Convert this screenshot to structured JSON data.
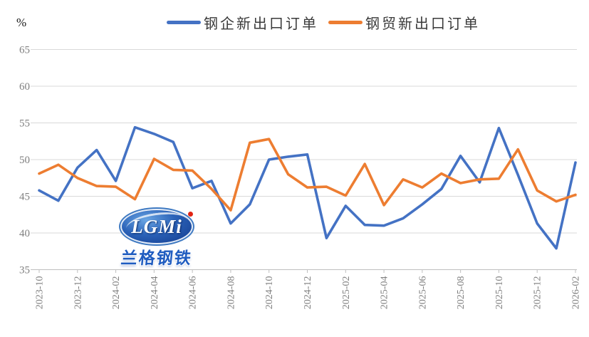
{
  "chart_data": {
    "type": "line",
    "title": "",
    "xlabel": "",
    "ylabel": "%",
    "ylim": [
      35,
      65
    ],
    "ytick_step": 5,
    "grid": true,
    "legend_position": "top",
    "xtick_every": 2,
    "xtick_rotation": 90,
    "categories": [
      "2023-10",
      "2023-11",
      "2023-12",
      "2024-01",
      "2024-02",
      "2024-03",
      "2024-04",
      "2024-05",
      "2024-06",
      "2024-07",
      "2024-08",
      "2024-09",
      "2024-10",
      "2024-11",
      "2024-12",
      "2025-01",
      "2025-02",
      "2025-03",
      "2025-04",
      "2025-05",
      "2025-06",
      "2025-07",
      "2025-08",
      "2025-09",
      "2025-10",
      "2025-11",
      "2025-12",
      "2026-01",
      "2026-02"
    ],
    "series": [
      {
        "name": "钢企新出口订单",
        "color": "#4472C4",
        "values": [
          45.8,
          44.4,
          48.9,
          51.3,
          47.1,
          54.4,
          53.5,
          52.4,
          46.1,
          47.1,
          41.3,
          43.9,
          50.0,
          50.4,
          50.7,
          39.3,
          43.7,
          41.1,
          41.0,
          42.0,
          43.9,
          46.0,
          50.5,
          46.9,
          54.3,
          47.9,
          41.3,
          37.9,
          49.6
        ]
      },
      {
        "name": "钢贸新出口订单",
        "color": "#ED7D31",
        "values": [
          48.1,
          49.3,
          47.5,
          46.4,
          46.3,
          44.6,
          50.1,
          48.6,
          48.5,
          46.0,
          43.1,
          52.3,
          52.8,
          48.0,
          46.2,
          46.3,
          45.1,
          49.4,
          43.8,
          47.3,
          46.2,
          48.1,
          46.8,
          47.3,
          47.4,
          51.4,
          45.8,
          44.3,
          45.2
        ]
      }
    ],
    "colors": {
      "gridline": "#D9D9D9",
      "axis_line": "#BFBFBF",
      "tick_label": "#7f7f7f"
    }
  },
  "y_axis": {
    "unit_label": "%"
  },
  "watermark": {
    "logo_text": "LGMi",
    "brand_text": "兰格钢铁"
  }
}
